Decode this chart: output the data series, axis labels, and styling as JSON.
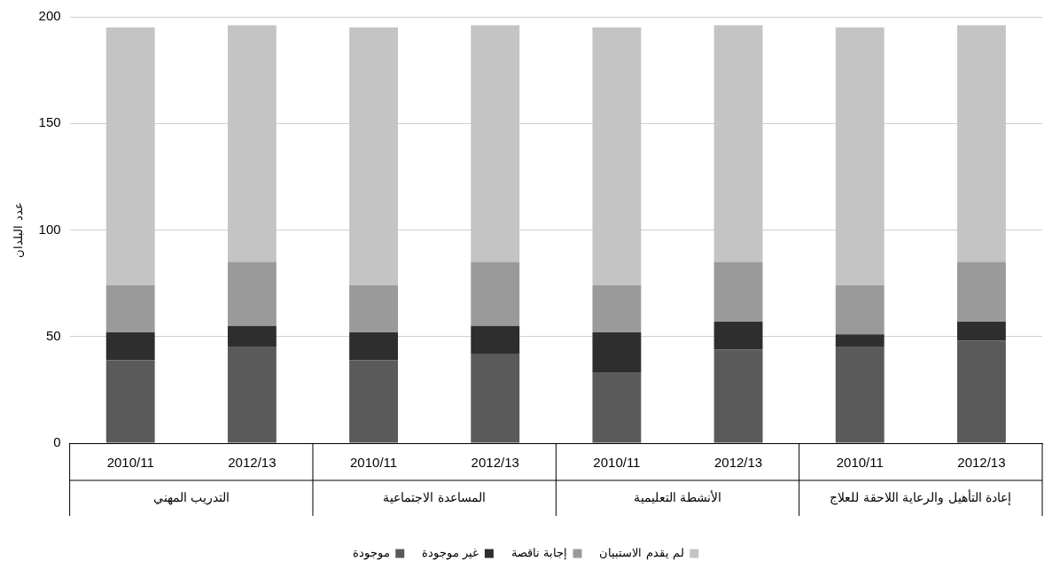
{
  "chart_data": {
    "type": "bar",
    "stacked": true,
    "ylabel": "عدد البلدان",
    "categories": [
      "2010/11",
      "2012/13",
      "2010/11",
      "2012/13",
      "2010/11",
      "2012/13",
      "2010/11",
      "2012/13"
    ],
    "annotations": [
      "التدريب المهني",
      "المساعدة الاجتماعية",
      "الأنشطة التعليمية",
      "إعادة التأهيل والرعاية اللاحقة للعلاج"
    ],
    "series": [
      {
        "name": "موجودة",
        "color": "#5a5a5a",
        "values": [
          39,
          45,
          39,
          42,
          33,
          44,
          45,
          48
        ]
      },
      {
        "name": "غير موجودة",
        "color": "#2e2e2e",
        "values": [
          13,
          10,
          13,
          13,
          19,
          13,
          6,
          9
        ]
      },
      {
        "name": "إجابة ناقصة",
        "color": "#9a9a9a",
        "values": [
          22,
          30,
          22,
          30,
          22,
          28,
          23,
          28
        ]
      },
      {
        "name": "لم يقدم الاستبيان",
        "color": "#c4c4c4",
        "values": [
          121,
          111,
          121,
          111,
          121,
          111,
          121,
          111
        ]
      }
    ],
    "ylim": [
      0,
      200
    ],
    "yticks": [
      0,
      50,
      100,
      150,
      200
    ],
    "grid": "y",
    "legend": "bottom"
  }
}
